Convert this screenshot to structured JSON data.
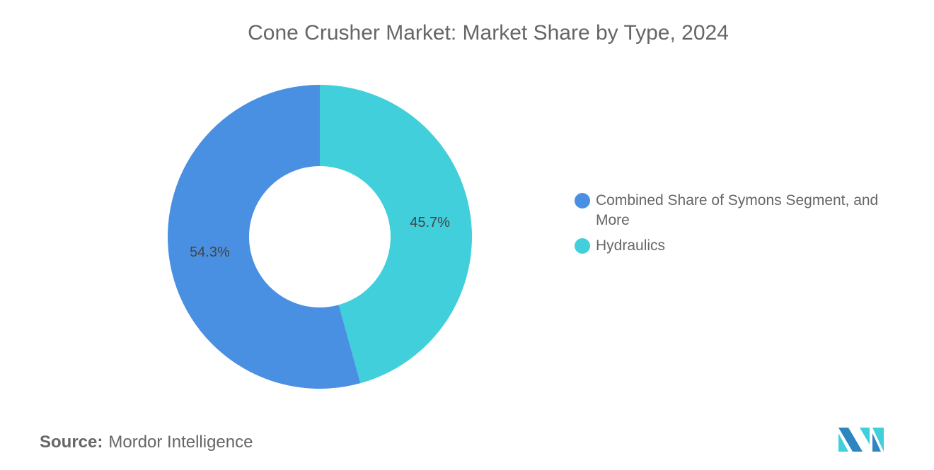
{
  "title": "Cone Crusher Market: Market Share by Type, 2024",
  "source_label": "Source:",
  "source_value": "Mordor Intelligence",
  "logo_text": "Mordor Intelligence",
  "chart_data": {
    "type": "pie",
    "donut": true,
    "title": "Cone Crusher Market: Market Share by Type, 2024",
    "legend_position": "right",
    "series": [
      {
        "name": "Hydraulics",
        "value": 45.7,
        "label": "45.7%",
        "color": "#40CFDB"
      },
      {
        "name": "Combined Share of Symons Segment, and More",
        "value": 54.3,
        "label": "54.3%",
        "color": "#4A90E2"
      }
    ],
    "legend": [
      {
        "name": "Combined Share of Symons Segment, and More",
        "color": "#4A90E2"
      },
      {
        "name": "Hydraulics",
        "color": "#40CFDB"
      }
    ]
  }
}
